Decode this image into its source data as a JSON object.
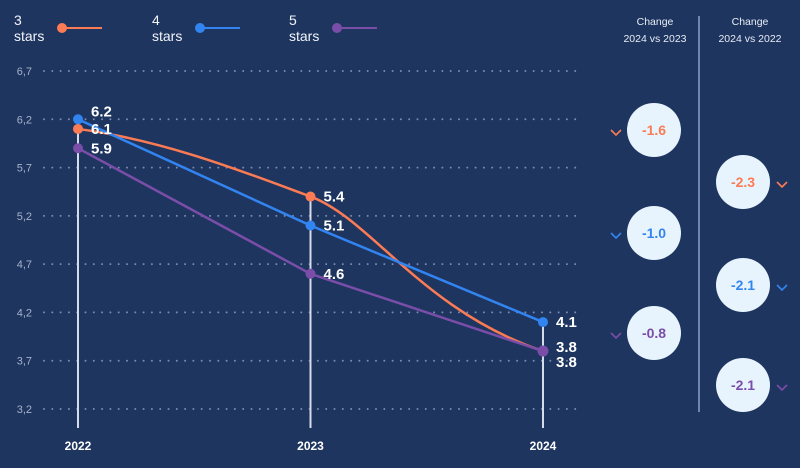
{
  "colors": {
    "background": "#1e3560",
    "three_stars": "#fb7b55",
    "four_stars": "#3285f0",
    "five_stars": "#7a4ea8",
    "grid": "#8b9bbb",
    "axis_text": "#a6b2c8",
    "label_text": "#ffffff",
    "bubble_bg": "#e8f4fd"
  },
  "chart_data": {
    "type": "line",
    "title": "",
    "xlabel": "",
    "ylabel": "",
    "x": [
      "2022",
      "2023",
      "2024"
    ],
    "y_ticks": [
      "6,7",
      "6,2",
      "5,7",
      "5,2",
      "4,7",
      "4,2",
      "3,7",
      "3,2"
    ],
    "y_tick_values": [
      6.7,
      6.2,
      5.7,
      5.2,
      4.7,
      4.2,
      3.7,
      3.2
    ],
    "ylim": [
      3.2,
      6.7
    ],
    "grid": "horizontal-dotted",
    "legend_position": "top-left",
    "series": [
      {
        "name": "3 stars",
        "key": "three_stars",
        "values": [
          6.1,
          5.4,
          3.8
        ],
        "labels": [
          "6.1",
          "5.4",
          "3.8"
        ],
        "curved": true
      },
      {
        "name": "4 stars",
        "key": "four_stars",
        "values": [
          6.2,
          5.1,
          4.1
        ],
        "labels": [
          "6.2",
          "5.1",
          "4.1"
        ],
        "curved": false
      },
      {
        "name": "5 stars",
        "key": "five_stars",
        "values": [
          5.9,
          4.6,
          3.8
        ],
        "labels": [
          "5.9",
          "4.6",
          "3.8"
        ],
        "curved": false
      }
    ]
  },
  "legend": [
    {
      "label": "3 stars",
      "key": "three_stars"
    },
    {
      "label": "4 stars",
      "key": "four_stars"
    },
    {
      "label": "5 stars",
      "key": "five_stars"
    }
  ],
  "changes": {
    "col1": {
      "title_line1": "Change",
      "title_line2": "2024 vs 2023",
      "items": [
        {
          "series": "3 stars",
          "key": "three_stars",
          "value": "-1.6",
          "direction": "down"
        },
        {
          "series": "4 stars",
          "key": "four_stars",
          "value": "-1.0",
          "direction": "down"
        },
        {
          "series": "5 stars",
          "key": "five_stars",
          "value": "-0.8",
          "direction": "down"
        }
      ]
    },
    "col2": {
      "title_line1": "Change",
      "title_line2": "2024 vs 2022",
      "items": [
        {
          "series": "3 stars",
          "key": "three_stars",
          "value": "-2.3",
          "direction": "down"
        },
        {
          "series": "4 stars",
          "key": "four_stars",
          "value": "-2.1",
          "direction": "down"
        },
        {
          "series": "5 stars",
          "key": "five_stars",
          "value": "-2.1",
          "direction": "down"
        }
      ]
    }
  }
}
